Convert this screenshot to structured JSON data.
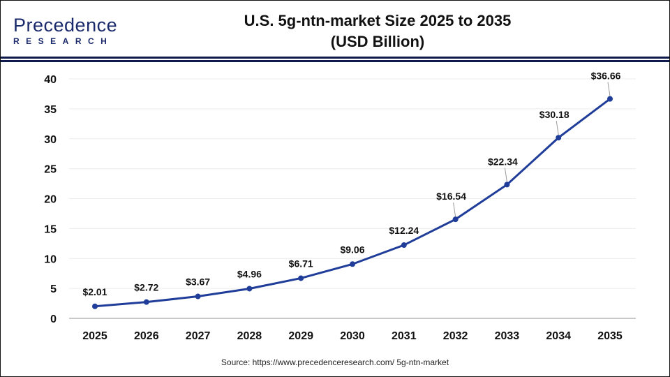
{
  "logo": {
    "line1": "Precedence",
    "line2": "RESEARCH"
  },
  "title_line1": "U.S. 5g-ntn-market Size 2025 to 2035",
  "title_line2": "(USD Billion)",
  "source": "Source: https://www.precedenceresearch.com/ 5g-ntn-market",
  "chart_data": {
    "type": "line",
    "title": "U.S. 5g-ntn-market Size 2025 to 2035 (USD Billion)",
    "categories": [
      "2025",
      "2026",
      "2027",
      "2028",
      "2029",
      "2030",
      "2031",
      "2032",
      "2033",
      "2034",
      "2035"
    ],
    "values": [
      2.01,
      2.72,
      3.67,
      4.96,
      6.71,
      9.06,
      12.24,
      16.54,
      22.34,
      30.18,
      36.66
    ],
    "data_labels": [
      "$2.01",
      "$2.72",
      "$3.67",
      "$4.96",
      "$6.71",
      "$9.06",
      "$12.24",
      "$16.54",
      "$22.34",
      "$30.18",
      "$36.66"
    ],
    "yticks": [
      0,
      5,
      10,
      15,
      20,
      25,
      30,
      35,
      40
    ],
    "ylim": [
      0,
      40
    ],
    "grid": true,
    "line_color": "#1f3d99"
  }
}
